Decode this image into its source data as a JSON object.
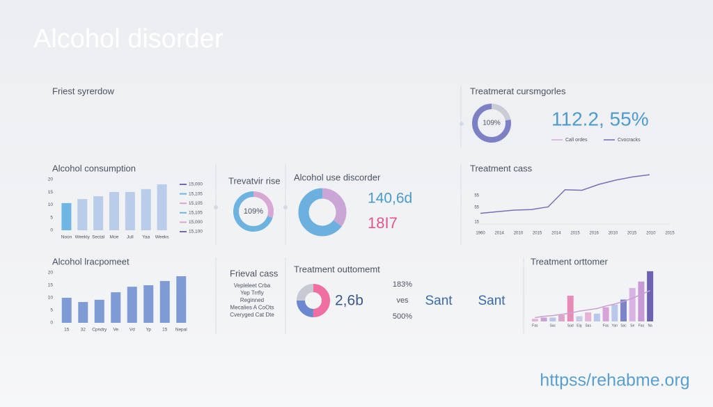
{
  "header": {
    "title": "Alcohol disorder"
  },
  "overview": {
    "title": "Friest syrerdow"
  },
  "categories_panel": {
    "title": "Treatmerat cursmgorles",
    "donut": {
      "label": "109%",
      "values": [
        22,
        78
      ],
      "colors": [
        "#c9ccd4",
        "#7e80c6"
      ]
    },
    "stat": "112.2, 55%",
    "legend": [
      {
        "name": "Call ordes",
        "color": "#dca6cc"
      },
      {
        "name": "Cvocracks",
        "color": "#6d69b3"
      }
    ]
  },
  "chart_data": [
    {
      "type": "bar",
      "title": "Alcohol consumption",
      "categories": [
        "Noon",
        "Weekly",
        "Sectal",
        "Moe",
        "Jull",
        "Yaa",
        "Weeks"
      ],
      "values": [
        10.7,
        12.3,
        13.4,
        15.1,
        15.1,
        16.2,
        18.1
      ],
      "colors": [
        "#6fb6e2",
        "#b9cdea",
        "#b9cdea",
        "#b9cdea",
        "#b9cdea",
        "#b9cdea",
        "#b9cdea"
      ],
      "ylim": [
        0,
        20
      ],
      "yticks": [
        0,
        5,
        10,
        15,
        20
      ],
      "legend": [
        {
          "name": "15,000",
          "color": "#6d69b3"
        },
        {
          "name": "15,105",
          "color": "#6fb6e2"
        },
        {
          "name": "15,105",
          "color": "#dca6cc"
        },
        {
          "name": "15,105",
          "color": "#6fb6e2"
        },
        {
          "name": "15,000",
          "color": "#dca6cc"
        },
        {
          "name": "15,100",
          "color": "#6d69b3"
        }
      ]
    },
    {
      "type": "line",
      "title": "Treatment cass",
      "categories": [
        "1960",
        "2014",
        "2010",
        "2015",
        "2014",
        "2015",
        "2016",
        "2010",
        "2015",
        "2010",
        "2015"
      ],
      "values": [
        2.0,
        2.3,
        2.6,
        2.7,
        3.2,
        6.4,
        6.3,
        7.4,
        8.2,
        8.8,
        9.2
      ],
      "color": "#7570b8",
      "ylim": [
        0,
        10
      ],
      "ytick_texts": [
        "55",
        "55",
        "15"
      ]
    },
    {
      "type": "bar",
      "title": "Alcohol lracpomeet",
      "categories": [
        "15",
        "32",
        "Cpndry",
        "Ve",
        "Vd",
        "Yp",
        "15",
        "Nepal"
      ],
      "values": [
        10,
        8.3,
        9.2,
        12.2,
        14.4,
        15,
        16.7,
        18.6
      ],
      "color": "#7f9bd6",
      "ylim": [
        0,
        20
      ],
      "yticks": [
        0,
        5,
        10,
        15,
        20
      ]
    },
    {
      "type": "bar",
      "title": "Treatment orttomer",
      "categories": [
        "Fas",
        null,
        "Sac",
        null,
        "Sad",
        "Eig",
        "Sas",
        null,
        "Fas",
        "Yan",
        "Sac",
        "Se",
        "Fas",
        "Na"
      ],
      "values": [
        4,
        6,
        6,
        10,
        40,
        8,
        14,
        12,
        22,
        26,
        34,
        52,
        62,
        78
      ],
      "colors": [
        "#e6b3d6",
        "#c9a0d8",
        "#b9c7ea",
        "#dca6cc",
        "#e98bb8",
        "#c6cbe8",
        "#e6b3d6",
        "#b9c7ea",
        "#d7a3d8",
        "#b9c7ea",
        "#7d83c9",
        "#d9b3e3",
        "#c79ad6",
        "#6d62b0"
      ],
      "ylim": [
        0,
        80
      ],
      "trend": [
        6,
        8,
        9,
        11,
        13,
        16,
        18,
        20,
        24,
        27,
        31,
        36,
        42,
        48
      ],
      "trend_color": "#c9a0d0"
    }
  ],
  "rise": {
    "title": "Trevatvir rise",
    "donut": {
      "label": "109%",
      "values": [
        30,
        70
      ],
      "colors": [
        "#d7a8d3",
        "#6db3e0"
      ]
    }
  },
  "use_disorder": {
    "title": "Alcohol use discorder",
    "donut": {
      "values": [
        35,
        65
      ],
      "colors": [
        "#c9a6d6",
        "#6cb0e0"
      ]
    },
    "stat_1": "140,6d",
    "stat_2": "18I7"
  },
  "frieval": {
    "title": "Frieval cass",
    "items": [
      "Vepleleet Crba",
      "Yep Trrfly",
      "Reginned",
      "Mecalies A CoOts",
      "Cveryged Cat Dte"
    ]
  },
  "outcome": {
    "title": "Treatment outtomemt",
    "donut": {
      "values": [
        50,
        25,
        25
      ],
      "colors": [
        "#ef6fa3",
        "#6c86cf",
        "#c6cad3"
      ]
    },
    "stat": "2,6b",
    "figures": [
      "183%",
      "ves",
      "500%"
    ],
    "labels": [
      "Sant",
      "Sant"
    ]
  },
  "footer": {
    "url": "httpss/rehabme.org"
  }
}
